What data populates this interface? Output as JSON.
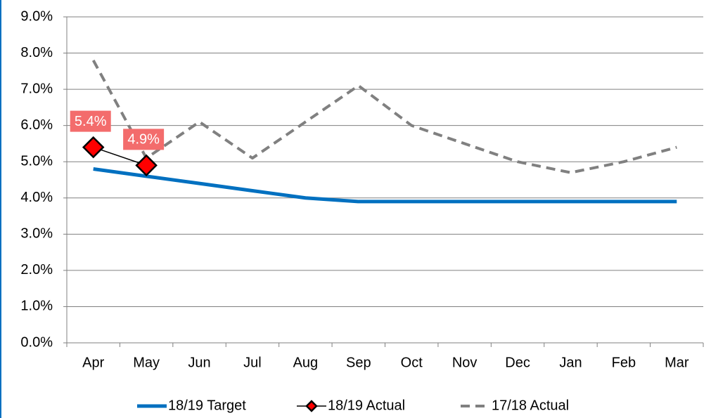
{
  "chart_data": {
    "type": "line",
    "categories": [
      "Apr",
      "May",
      "Jun",
      "Jul",
      "Aug",
      "Sep",
      "Oct",
      "Nov",
      "Dec",
      "Jan",
      "Feb",
      "Mar"
    ],
    "ylim": [
      0,
      9
    ],
    "yticks": [
      {
        "value": 0,
        "label": "0.0%"
      },
      {
        "value": 1,
        "label": "1.0%"
      },
      {
        "value": 2,
        "label": "2.0%"
      },
      {
        "value": 3,
        "label": "3.0%"
      },
      {
        "value": 4,
        "label": "4.0%"
      },
      {
        "value": 5,
        "label": "5.0%"
      },
      {
        "value": 6,
        "label": "6.0%"
      },
      {
        "value": 7,
        "label": "7.0%"
      },
      {
        "value": 8,
        "label": "8.0%"
      },
      {
        "value": 9,
        "label": "9.0%"
      }
    ],
    "grid": true,
    "legend": "bottom",
    "series": [
      {
        "name": "18/19 Target",
        "color": "#0070c0",
        "line_style": "solid",
        "values": [
          4.8,
          4.6,
          4.4,
          4.2,
          4.0,
          3.9,
          3.9,
          3.9,
          3.9,
          3.9,
          3.9,
          3.9
        ]
      },
      {
        "name": "18/19 Actual",
        "color": "#ff0000",
        "line_style": "solid",
        "marker": "diamond",
        "values": [
          5.4,
          4.9,
          null,
          null,
          null,
          null,
          null,
          null,
          null,
          null,
          null,
          null
        ],
        "value_labels": [
          "5.4%",
          "4.9%",
          null,
          null,
          null,
          null,
          null,
          null,
          null,
          null,
          null,
          null
        ],
        "label_color": "#f36c6c"
      },
      {
        "name": "17/18 Actual",
        "color": "#808080",
        "line_style": "dashed",
        "values": [
          7.8,
          5.1,
          6.1,
          5.1,
          6.1,
          7.1,
          6.0,
          5.5,
          5.0,
          4.7,
          5.0,
          5.4
        ]
      }
    ]
  }
}
